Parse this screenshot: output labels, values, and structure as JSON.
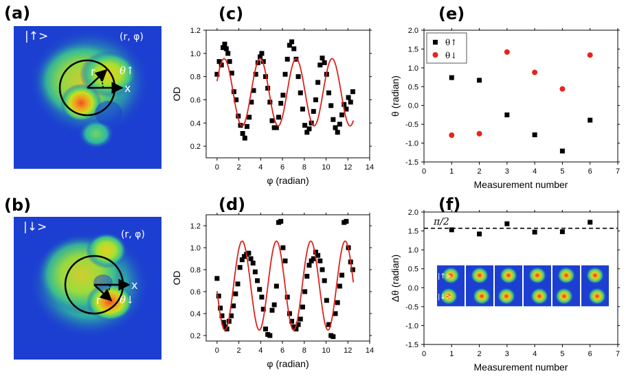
{
  "panels": {
    "a": {
      "label": "(a)",
      "state": "|↑>",
      "coords": "(r, φ)",
      "r": "r",
      "x": "x",
      "theta": "θ↑"
    },
    "b": {
      "label": "(b)",
      "state": "|↓>",
      "coords": "(r, φ)",
      "r": "r",
      "x": "x",
      "theta": "θ↓"
    }
  },
  "colors": {
    "points": "#000000",
    "fit": "#e0201b",
    "red_points": "#e8221c",
    "image_bg": "#1c3fd1"
  },
  "chart_data": [
    {
      "id": "c",
      "type": "scatter",
      "title": "(c)",
      "xlabel": "φ (radian)",
      "ylabel": "OD",
      "xlim": [
        -1,
        14
      ],
      "ylim": [
        0.1,
        1.2
      ],
      "xticks": [
        0,
        2,
        4,
        6,
        8,
        10,
        12,
        14
      ],
      "yticks": [
        0.2,
        0.4,
        0.6,
        0.8,
        1.0,
        1.2
      ],
      "ytick_labels": [
        "0.2",
        "0.4",
        "0.6",
        "0.8",
        "1.0",
        "1.2"
      ],
      "series": [
        {
          "name": "data",
          "x": [
            0,
            0.2,
            0.4,
            0.55,
            0.7,
            0.85,
            1.0,
            1.15,
            1.35,
            1.55,
            1.75,
            1.95,
            2.15,
            2.35,
            2.55,
            2.75,
            2.95,
            3.15,
            3.35,
            3.55,
            3.75,
            3.95,
            4.1,
            4.25,
            4.45,
            4.65,
            4.85,
            5.05,
            5.25,
            5.45,
            5.65,
            5.85,
            6.05,
            6.25,
            6.45,
            6.65,
            6.85,
            7.05,
            7.25,
            7.45,
            7.65,
            7.85,
            8.05,
            8.25,
            8.45,
            8.65,
            8.85,
            9.05,
            9.25,
            9.45,
            9.65,
            9.85,
            10.05,
            10.25,
            10.45,
            10.65,
            10.85,
            11.05,
            11.25,
            11.45,
            11.65,
            11.85,
            12.05,
            12.25,
            12.45
          ],
          "y": [
            0.82,
            0.93,
            0.9,
            1.05,
            1.08,
            1.04,
            1.0,
            0.93,
            0.83,
            0.67,
            0.6,
            0.46,
            0.38,
            0.31,
            0.27,
            0.37,
            0.45,
            0.58,
            0.68,
            0.82,
            0.92,
            0.97,
            1.0,
            0.93,
            0.8,
            0.7,
            0.58,
            0.42,
            0.36,
            0.36,
            0.45,
            0.57,
            0.64,
            0.82,
            0.95,
            1.07,
            1.1,
            1.04,
            0.95,
            0.8,
            0.66,
            0.52,
            0.38,
            0.32,
            0.35,
            0.4,
            0.5,
            0.6,
            0.75,
            0.9,
            0.96,
            0.92,
            0.82,
            0.66,
            0.55,
            0.43,
            0.36,
            0.32,
            0.39,
            0.47,
            0.56,
            0.52,
            0.62,
            0.58,
            0.67
          ]
        },
        {
          "name": "fit",
          "offset": 0.665,
          "amplitude": 0.29,
          "period": 3.3,
          "phase_x": 0.65,
          "x_range": [
            0,
            12.5
          ]
        }
      ]
    },
    {
      "id": "d",
      "type": "scatter",
      "title": "(d)",
      "xlabel": "φ (radian)",
      "ylabel": "OD",
      "xlim": [
        -1,
        14
      ],
      "ylim": [
        0.15,
        1.3
      ],
      "xticks": [
        0,
        2,
        4,
        6,
        8,
        10,
        12,
        14
      ],
      "yticks": [
        0.2,
        0.4,
        0.6,
        0.8,
        1.0,
        1.2
      ],
      "ytick_labels": [
        "0.2",
        "0.4",
        "0.6",
        "0.8",
        "1.0",
        "1.2"
      ],
      "series": [
        {
          "name": "data",
          "x": [
            0,
            0.15,
            0.3,
            0.45,
            0.6,
            0.75,
            0.9,
            1.1,
            1.3,
            1.5,
            1.7,
            1.9,
            2.1,
            2.3,
            2.5,
            2.7,
            2.9,
            3.1,
            3.3,
            3.5,
            3.7,
            3.9,
            4.1,
            4.25,
            4.45,
            4.65,
            4.85,
            5.05,
            5.25,
            5.45,
            5.65,
            5.85,
            6.05,
            6.25,
            6.45,
            6.65,
            6.85,
            7.05,
            7.25,
            7.45,
            7.65,
            7.85,
            8.05,
            8.25,
            8.45,
            8.65,
            8.85,
            9.05,
            9.25,
            9.45,
            9.65,
            9.85,
            10.05,
            10.25,
            10.45,
            10.65,
            10.85,
            11.05,
            11.25,
            11.45,
            11.65,
            11.85,
            12.05,
            12.25,
            12.45
          ],
          "y": [
            0.72,
            0.56,
            0.45,
            0.38,
            0.32,
            0.28,
            0.26,
            0.33,
            0.38,
            0.47,
            0.58,
            0.67,
            0.82,
            0.89,
            0.92,
            0.94,
            0.95,
            0.9,
            0.86,
            0.78,
            0.7,
            0.62,
            0.55,
            0.44,
            0.26,
            0.21,
            0.2,
            0.43,
            0.48,
            0.65,
            1.23,
            1.24,
            1.0,
            0.88,
            0.55,
            0.4,
            0.33,
            0.28,
            0.26,
            0.3,
            0.35,
            0.46,
            0.6,
            0.74,
            0.84,
            0.88,
            0.9,
            0.96,
            0.93,
            0.88,
            0.8,
            0.7,
            0.52,
            0.3,
            0.2,
            0.19,
            0.4,
            0.5,
            0.65,
            0.75,
            1.23,
            1.24,
            1.0,
            0.87,
            0.8
          ]
        },
        {
          "name": "fit",
          "offset": 0.655,
          "amplitude": 0.405,
          "period": 3.15,
          "phase_x": 2.3,
          "x_range": [
            0,
            12.5
          ]
        }
      ]
    },
    {
      "id": "e",
      "type": "scatter",
      "title": "(e)",
      "xlabel": "Measurement number",
      "ylabel": "θ (radian)",
      "xlim": [
        0,
        7
      ],
      "ylim": [
        -1.5,
        2.0
      ],
      "xticks": [
        0,
        1,
        2,
        3,
        4,
        5,
        6,
        7
      ],
      "yticks": [
        -1.5,
        -1.0,
        -0.5,
        0.0,
        0.5,
        1.0,
        1.5,
        2.0
      ],
      "ytick_labels": [
        "-1.5",
        "-1.0",
        "-0.5",
        "0.0",
        "0.5",
        "1.0",
        "1.5",
        "2.0"
      ],
      "legend": [
        "θ↑",
        "θ↓"
      ],
      "legend_position": "top-left",
      "series": [
        {
          "name": "θ↑",
          "marker": "square",
          "x": [
            1,
            2,
            3,
            4,
            5,
            6
          ],
          "y": [
            0.74,
            0.67,
            -0.25,
            -0.78,
            -1.21,
            -0.39
          ]
        },
        {
          "name": "θ↓",
          "marker": "circle",
          "x": [
            1,
            2,
            3,
            4,
            5,
            6
          ],
          "y": [
            -0.79,
            -0.75,
            1.42,
            0.88,
            0.44,
            1.34
          ]
        }
      ]
    },
    {
      "id": "f",
      "type": "scatter",
      "title": "(f)",
      "xlabel": "Measurement number",
      "ylabel": "Δθ (radian)",
      "xlim": [
        0,
        7
      ],
      "ylim": [
        -1.5,
        2.0
      ],
      "xticks": [
        0,
        1,
        2,
        3,
        4,
        5,
        6,
        7
      ],
      "yticks": [
        -1.5,
        -1.0,
        -0.5,
        0.0,
        0.5,
        1.0,
        1.5,
        2.0
      ],
      "ytick_labels": [
        "-1.5",
        "-1.0",
        "-0.5",
        "0.0",
        "0.5",
        "1.0",
        "1.5",
        "2.0"
      ],
      "reference_line": {
        "value": 1.5708,
        "label": "π/2",
        "style": "dashed"
      },
      "inset_labels": [
        "|↑>",
        "|↓>"
      ],
      "inset_count": 6,
      "series": [
        {
          "name": "Δθ",
          "marker": "square",
          "x": [
            1,
            2,
            3,
            4,
            5,
            6
          ],
          "y": [
            1.53,
            1.42,
            1.69,
            1.47,
            1.48,
            1.73
          ]
        }
      ]
    }
  ]
}
